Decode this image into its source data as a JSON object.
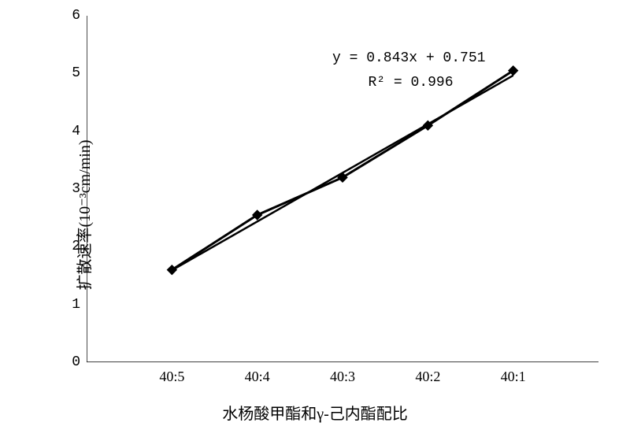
{
  "chart": {
    "type": "line-scatter",
    "background_color": "#ffffff",
    "axis_color": "#000000",
    "tick_length": 6,
    "axis_line_width": 1.4,
    "xlabel": "水杨酸甲酯和γ-己内酯配比",
    "ylabel": "扩散速率(10⁻³cm/min)",
    "label_fontsize": 20,
    "tick_fontsize": 18,
    "yticks": [
      0,
      1,
      2,
      3,
      4,
      5,
      6
    ],
    "ylim": [
      0,
      6
    ],
    "x_categories": [
      "40:5",
      "40:4",
      "40:3",
      "40:2",
      "40:1"
    ],
    "x_positions": [
      1,
      2,
      3,
      4,
      5
    ],
    "xlim": [
      0,
      6
    ],
    "data_points": [
      {
        "x": 1,
        "y": 1.6
      },
      {
        "x": 2,
        "y": 2.55
      },
      {
        "x": 3,
        "y": 3.2
      },
      {
        "x": 4,
        "y": 4.1
      },
      {
        "x": 5,
        "y": 5.05
      }
    ],
    "fit_line": {
      "slope": 0.843,
      "intercept": 0.751,
      "x1": 1,
      "x2": 5
    },
    "equation_text": "y = 0.843x + 0.751",
    "r2_text": "R² = 0.996",
    "equation_pos": {
      "left_pct": 48,
      "top_pct": 10
    },
    "r2_pos": {
      "left_pct": 55,
      "top_pct": 17
    },
    "series": {
      "line_color": "#000000",
      "line_width": 3,
      "fit_line_width": 2.5,
      "marker_shape": "diamond",
      "marker_size": 12,
      "marker_color": "#000000"
    }
  }
}
